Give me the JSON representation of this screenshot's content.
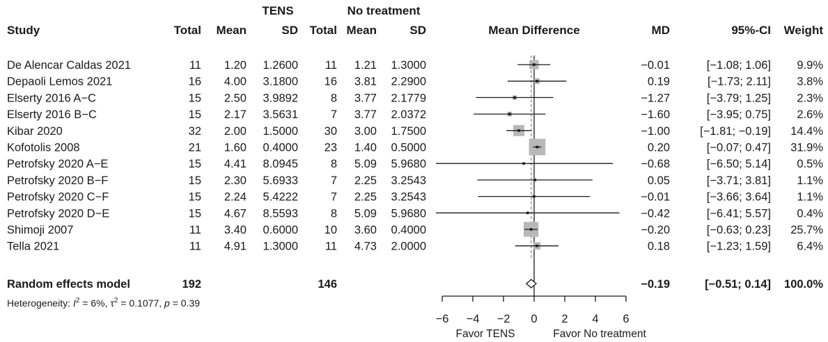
{
  "chart_data": {
    "type": "forest",
    "header": {
      "group1": "TENS",
      "group2": "No treatment",
      "study": "Study",
      "total": "Total",
      "mean": "Mean",
      "sd": "SD",
      "plot": "Mean Difference",
      "md": "MD",
      "ci": "95%-CI",
      "weight": "Weight"
    },
    "studies": [
      {
        "study": "De Alencar Caldas  2021",
        "n1": "11",
        "mean1": "1.20",
        "sd1": "1.2600",
        "n2": "11",
        "mean2": "1.21",
        "sd2": "1.3000",
        "md": -0.01,
        "lo": -1.08,
        "hi": 1.06,
        "weight": 9.9,
        "md_text": "−0.01",
        "ci_text": "[−1.08;  1.06]",
        "weight_text": "9.9%"
      },
      {
        "study": "Depaoli Lemos 2021",
        "n1": "16",
        "mean1": "4.00",
        "sd1": "3.1800",
        "n2": "16",
        "mean2": "3.81",
        "sd2": "2.2900",
        "md": 0.19,
        "lo": -1.73,
        "hi": 2.11,
        "weight": 3.8,
        "md_text": "0.19",
        "ci_text": "[−1.73;  2.11]",
        "weight_text": "3.8%"
      },
      {
        "study": "Elserty 2016 A−C",
        "n1": "15",
        "mean1": "2.50",
        "sd1": "3.9892",
        "n2": "8",
        "mean2": "3.77",
        "sd2": "2.1779",
        "md": -1.27,
        "lo": -3.79,
        "hi": 1.25,
        "weight": 2.3,
        "md_text": "−1.27",
        "ci_text": "[−3.79;  1.25]",
        "weight_text": "2.3%"
      },
      {
        "study": "Elserty 2016 B−C",
        "n1": "15",
        "mean1": "2.17",
        "sd1": "3.5631",
        "n2": "7",
        "mean2": "3.77",
        "sd2": "2.0372",
        "md": -1.6,
        "lo": -3.95,
        "hi": 0.75,
        "weight": 2.6,
        "md_text": "−1.60",
        "ci_text": "[−3.95;  0.75]",
        "weight_text": "2.6%"
      },
      {
        "study": "Kibar 2020",
        "n1": "32",
        "mean1": "2.00",
        "sd1": "1.5000",
        "n2": "30",
        "mean2": "3.00",
        "sd2": "1.7500",
        "md": -1.0,
        "lo": -1.81,
        "hi": -0.19,
        "weight": 14.4,
        "md_text": "−1.00",
        "ci_text": "[−1.81; −0.19]",
        "weight_text": "14.4%"
      },
      {
        "study": "Kofotolis 2008",
        "n1": "21",
        "mean1": "1.60",
        "sd1": "0.4000",
        "n2": "23",
        "mean2": "1.40",
        "sd2": "0.5000",
        "md": 0.2,
        "lo": -0.07,
        "hi": 0.47,
        "weight": 31.9,
        "md_text": "0.20",
        "ci_text": "[−0.07;  0.47]",
        "weight_text": "31.9%"
      },
      {
        "study": "Petrofsky 2020 A−E",
        "n1": "15",
        "mean1": "4.41",
        "sd1": "8.0945",
        "n2": "8",
        "mean2": "5.09",
        "sd2": "5.9680",
        "md": -0.68,
        "lo": -6.5,
        "hi": 5.14,
        "weight": 0.5,
        "md_text": "−0.68",
        "ci_text": "[−6.50;  5.14]",
        "weight_text": "0.5%"
      },
      {
        "study": "Petrofsky 2020 B−F",
        "n1": "15",
        "mean1": "2.30",
        "sd1": "5.6933",
        "n2": "7",
        "mean2": "2.25",
        "sd2": "3.2543",
        "md": 0.05,
        "lo": -3.71,
        "hi": 3.81,
        "weight": 1.1,
        "md_text": "0.05",
        "ci_text": "[−3.71;  3.81]",
        "weight_text": "1.1%"
      },
      {
        "study": "Petrofsky 2020 C−F",
        "n1": "15",
        "mean1": "2.24",
        "sd1": "5.4222",
        "n2": "7",
        "mean2": "2.25",
        "sd2": "3.2543",
        "md": -0.01,
        "lo": -3.66,
        "hi": 3.64,
        "weight": 1.1,
        "md_text": "−0.01",
        "ci_text": "[−3.66;  3.64]",
        "weight_text": "1.1%"
      },
      {
        "study": "Petrofsky 2020 D−E",
        "n1": "15",
        "mean1": "4.67",
        "sd1": "8.5593",
        "n2": "8",
        "mean2": "5.09",
        "sd2": "5.9680",
        "md": -0.42,
        "lo": -6.41,
        "hi": 5.57,
        "weight": 0.4,
        "md_text": "−0.42",
        "ci_text": "[−6.41;  5.57]",
        "weight_text": "0.4%"
      },
      {
        "study": "Shimoji 2007",
        "n1": "11",
        "mean1": "3.40",
        "sd1": "0.6000",
        "n2": "10",
        "mean2": "3.60",
        "sd2": "0.4000",
        "md": -0.2,
        "lo": -0.63,
        "hi": 0.23,
        "weight": 25.7,
        "md_text": "−0.20",
        "ci_text": "[−0.63;  0.23]",
        "weight_text": "25.7%"
      },
      {
        "study": "Tella 2021",
        "n1": "11",
        "mean1": "4.91",
        "sd1": "1.3000",
        "n2": "11",
        "mean2": "4.73",
        "sd2": "2.0000",
        "md": 0.18,
        "lo": -1.23,
        "hi": 1.59,
        "weight": 6.4,
        "md_text": "0.18",
        "ci_text": "[−1.23;  1.59]",
        "weight_text": "6.4%"
      }
    ],
    "pooled": {
      "label": "Random effects model",
      "n1": "192",
      "n2": "146",
      "md": -0.19,
      "lo": -0.51,
      "hi": 0.14,
      "md_text": "−0.19",
      "ci_text": "[−0.51;  0.14]",
      "weight_text": "100.0%"
    },
    "heterogeneity": {
      "prefix": "Heterogeneity: ",
      "i2_symbol": "I",
      "i2_value": " = 6%, ",
      "tau2_symbol": "τ",
      "tau2_value": " = 0.1077, ",
      "p_symbol": "p",
      "p_value": " = 0.39"
    },
    "x_axis": {
      "range": [
        -6,
        6
      ],
      "ticks": [
        -6,
        -4,
        -2,
        0,
        2,
        4,
        6
      ],
      "tick_labels": [
        "−6",
        "−4",
        "−2",
        "0",
        "2",
        "4",
        "6"
      ],
      "label_left": "Favor TENS",
      "label_right": "Favor No treatment"
    },
    "colors": {
      "text": "#1a1a1a",
      "ci_line": "#1a1a1a",
      "square": "#b8b8b8",
      "dashed_line": "#8c8c8c",
      "diamond_fill": "#ffffff"
    }
  }
}
